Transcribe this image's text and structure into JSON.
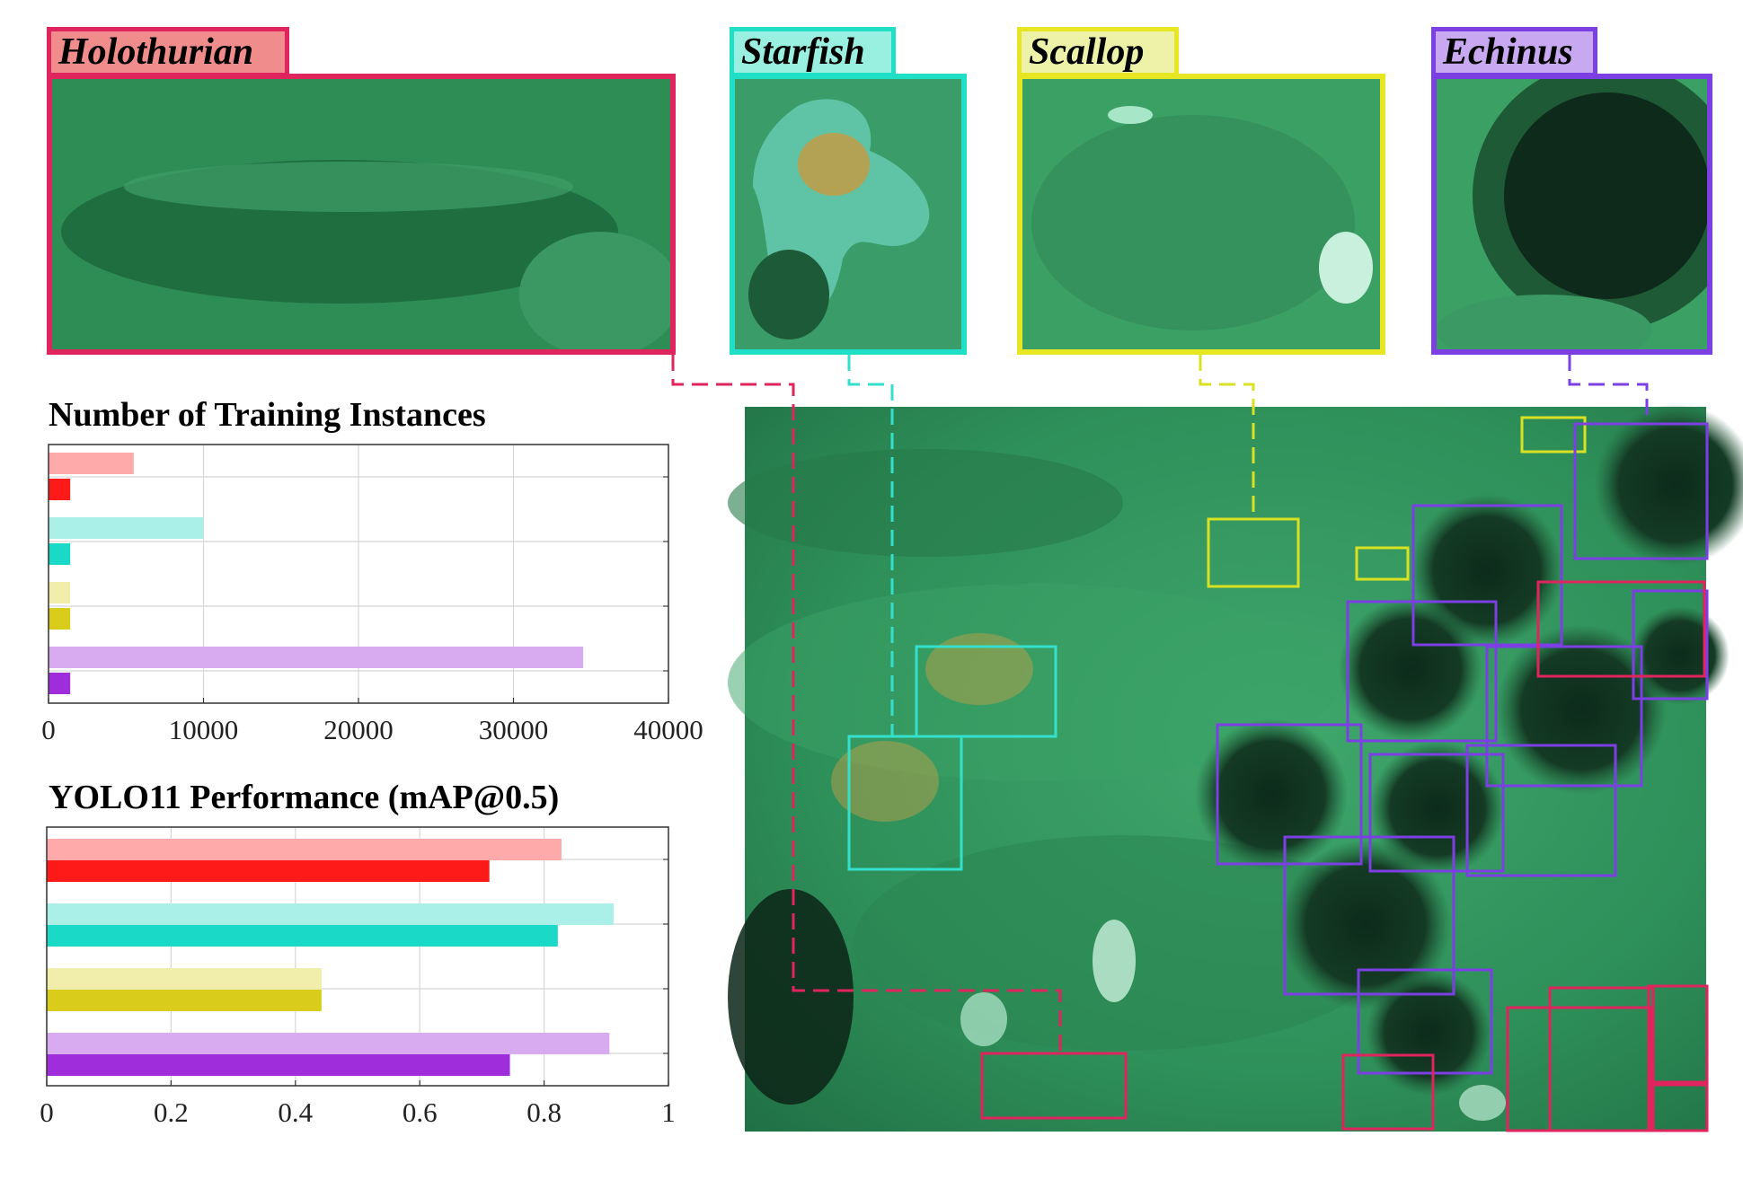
{
  "crops": [
    {
      "label": "Holothurian",
      "color": "#e0245e",
      "fill": "#f08c8c"
    },
    {
      "label": "Starfish",
      "color": "#1fe0c6",
      "fill": "#9af0e0"
    },
    {
      "label": "Scallop",
      "color": "#e6e622",
      "fill": "#eef2a8"
    },
    {
      "label": "Echinus",
      "color": "#7b3fe4",
      "fill": "#c8a8f0"
    }
  ],
  "chart_data": [
    {
      "type": "bar",
      "title": "Number of Training Instances",
      "orientation": "horizontal",
      "categories": [
        "Holothurian",
        "Starfish",
        "Scallop",
        "Echinus"
      ],
      "series": [
        {
          "values": [
            5500,
            10000,
            1400,
            34500
          ],
          "colors": [
            "#ffaaaa",
            "#aaf0e8",
            "#f0eeaa",
            "#d8aaf0"
          ]
        },
        {
          "values": [
            1400,
            1400,
            1400,
            1400
          ],
          "colors": [
            "#ff1a1a",
            "#1ad9c6",
            "#d9cc1a",
            "#a02ddc"
          ]
        }
      ],
      "xlim": [
        0,
        40000
      ],
      "xticks": [
        "0",
        "10000",
        "20000",
        "30000",
        "40000"
      ],
      "grid": true
    },
    {
      "type": "bar",
      "title": "YOLO11 Performance (mAP@0.5)",
      "orientation": "horizontal",
      "categories": [
        "Holothurian",
        "Starfish",
        "Scallop",
        "Echinus"
      ],
      "series": [
        {
          "values": [
            0.828,
            0.912,
            0.442,
            0.905
          ],
          "colors": [
            "#ffaaaa",
            "#aaf0e8",
            "#f0eeaa",
            "#d8aaf0"
          ]
        },
        {
          "values": [
            0.712,
            0.822,
            0.442,
            0.745
          ],
          "colors": [
            "#ff1a1a",
            "#1ad9c6",
            "#d9cc1a",
            "#a02ddc"
          ]
        }
      ],
      "xlim": [
        0,
        1
      ],
      "xticks": [
        "0",
        "0.2",
        "0.4",
        "0.6",
        "0.8",
        "1"
      ],
      "grid": true
    }
  ]
}
